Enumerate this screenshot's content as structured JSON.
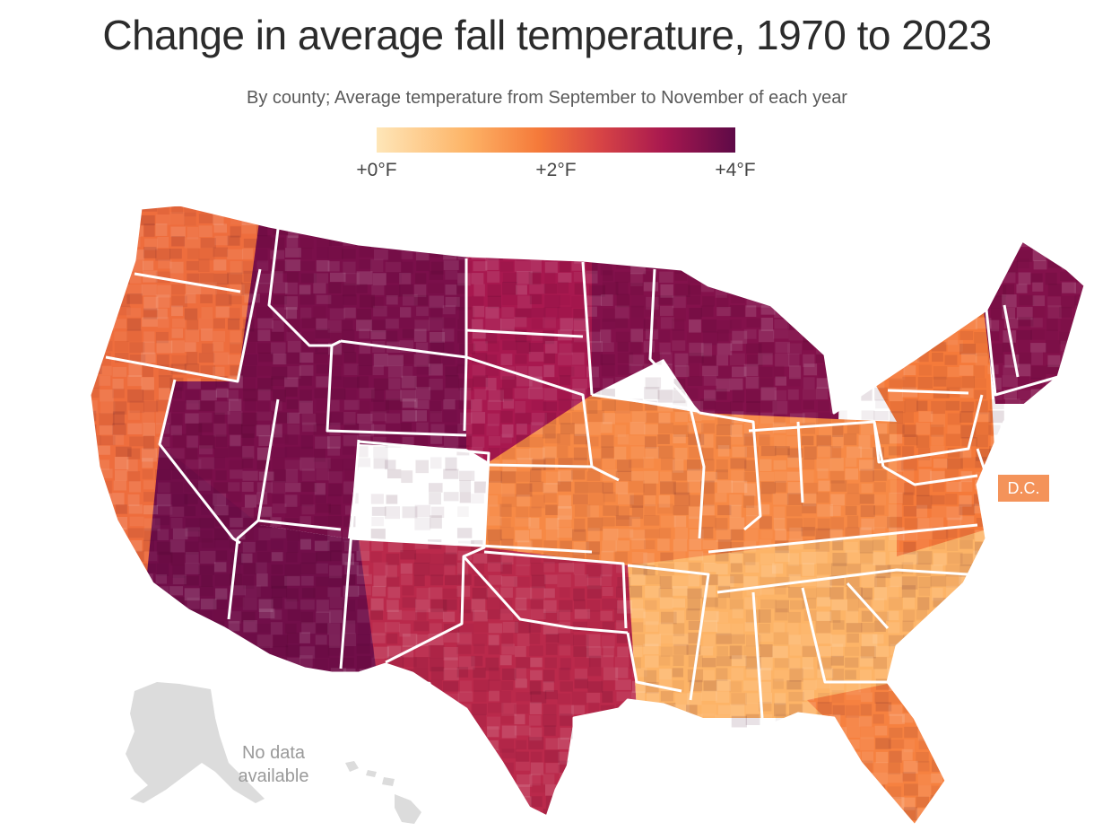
{
  "title": "Change in average fall temperature, 1970 to 2023",
  "subtitle": "By county; Average temperature from September to November of each year",
  "legend": {
    "labels": [
      "+0°F",
      "+2°F",
      "+4°F"
    ],
    "min_value": 0,
    "max_value": 4,
    "unit": "°F",
    "colors": [
      "#fee6b8",
      "#fdb467",
      "#f57a3a",
      "#d84545",
      "#a8184f",
      "#5e0a47"
    ]
  },
  "callouts": {
    "dc": "D.C.",
    "no_data_line1": "No data",
    "no_data_line2": "available"
  },
  "regions": [
    {
      "id": "west-coast",
      "change_f": 1.8
    },
    {
      "id": "mountain-west",
      "change_f": 3.7
    },
    {
      "id": "southwest",
      "change_f": 3.8
    },
    {
      "id": "northern-plains",
      "change_f": 3.2
    },
    {
      "id": "upper-midwest",
      "change_f": 3.6
    },
    {
      "id": "southern-plains-texas",
      "change_f": 2.9
    },
    {
      "id": "midwest-central",
      "change_f": 1.4
    },
    {
      "id": "southeast",
      "change_f": 0.8
    },
    {
      "id": "florida",
      "change_f": 1.5
    },
    {
      "id": "mid-atlantic",
      "change_f": 1.6
    },
    {
      "id": "new-england",
      "change_f": 3.6
    }
  ],
  "colors": {
    "no_data_gray": "#dcdcdc",
    "state_border": "#ffffff"
  }
}
